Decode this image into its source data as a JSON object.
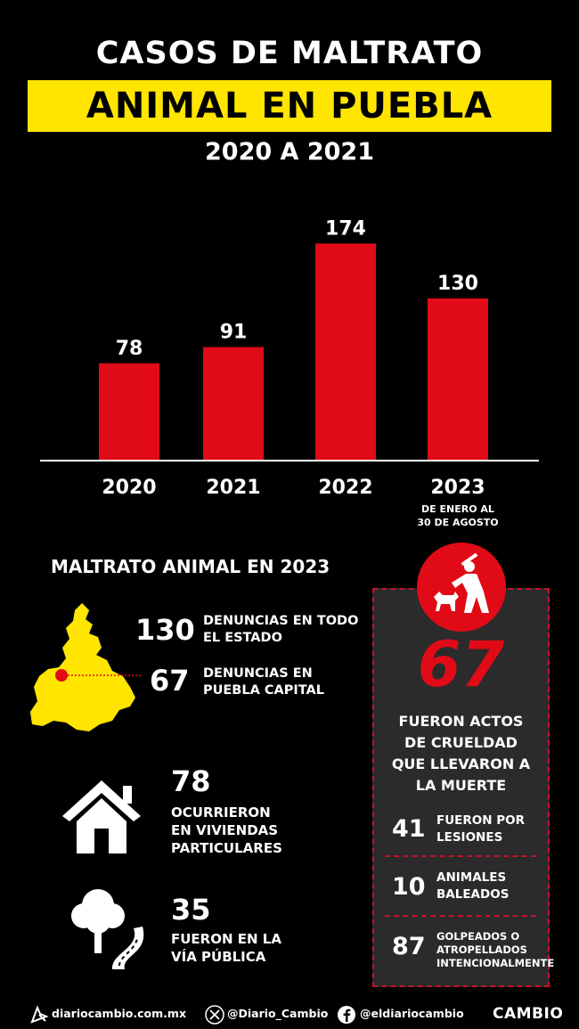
{
  "header": {
    "title_line1": "CASOS DE MALTRATO",
    "title_line2": "ANIMAL EN PUEBLA",
    "subtitle": "2020 A 2021"
  },
  "chart_data": {
    "type": "bar",
    "categories": [
      "2020",
      "2021",
      "2022",
      "2023"
    ],
    "values": [
      78,
      91,
      174,
      130
    ],
    "category_notes": [
      "",
      "",
      "",
      "DE ENERO AL\n30 DE AGOSTO"
    ],
    "bar_color": "#e10b17",
    "grid": false
  },
  "section": {
    "title": "MALTRATO ANIMAL EN 2023",
    "stats": [
      {
        "value": "130",
        "label": "DENUNCIAS EN TODO\nEL ESTADO"
      },
      {
        "value": "67",
        "label": "DENUNCIAS EN\nPUEBLA CAPITAL"
      }
    ],
    "home": {
      "value": "78",
      "label": "OCURRIERON\nEN VIVIENDAS\nPARTICULARES",
      "icon": "house-icon"
    },
    "street": {
      "value": "35",
      "label": "FUERON EN LA\nVÍA PÚBLICA",
      "icon": "tree-road-icon"
    },
    "map_icon": "puebla-map-icon",
    "map_color": "#ffe500"
  },
  "panel": {
    "icon": "animal-abuse-icon",
    "value": "67",
    "text": "FUERON ACTOS\nDE CRUELDAD\nQUE LLEVARON A\nLA MUERTE",
    "items": [
      {
        "value": "41",
        "label": "FUERON POR\nLESIONES"
      },
      {
        "value": "10",
        "label": "ANIMALES\nBALEADOS"
      },
      {
        "value": "87",
        "label": "GOLPEADOS O\nATROPELLADOS\nINTENCIONALMENTE"
      }
    ]
  },
  "footer": {
    "website": "diariocambio.com.mx",
    "twitter": "@Diario_Cambio",
    "facebook": "@eldiariocambio",
    "brand": "CAMBIO"
  },
  "colors": {
    "accent_yellow": "#ffe500",
    "accent_red": "#e10b17",
    "background": "#000000"
  }
}
